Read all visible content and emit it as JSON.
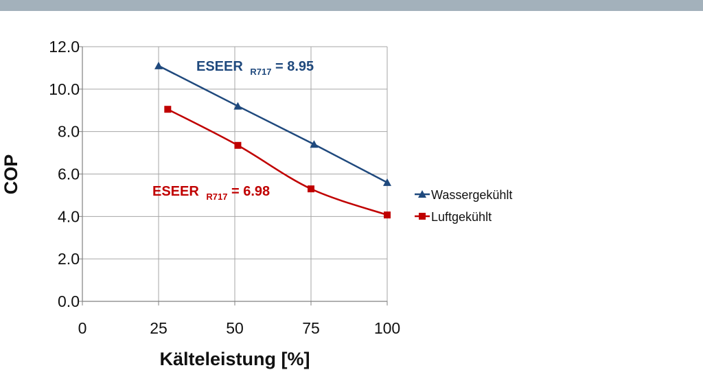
{
  "chart_data": {
    "type": "line",
    "xlabel": "Kälteleistung [%]",
    "ylabel": "COP",
    "xlim": [
      0,
      100
    ],
    "ylim": [
      0,
      12
    ],
    "x_ticks": [
      "0",
      "25",
      "50",
      "75",
      "100"
    ],
    "y_ticks": [
      "0.0",
      "2.0",
      "4.0",
      "6.0",
      "8.0",
      "10.0",
      "12.0"
    ],
    "grid": true,
    "legend_position": "right",
    "series": [
      {
        "name": "Wassergekühlt",
        "color": "#1f497d",
        "marker": "triangle",
        "x": [
          25,
          51,
          76,
          100
        ],
        "y": [
          11.1,
          9.2,
          7.4,
          5.6
        ]
      },
      {
        "name": "Luftgekühlt",
        "color": "#c00000",
        "marker": "square",
        "x": [
          28,
          51,
          75,
          100
        ],
        "y": [
          9.05,
          7.35,
          5.3,
          4.07
        ]
      }
    ],
    "annotations": [
      {
        "series": "Wassergekühlt",
        "text": "ESEER",
        "sub": "R717",
        "suffix": " = 8.95",
        "color": "#1f497d"
      },
      {
        "series": "Luftgekühlt",
        "text": "ESEER",
        "sub": "R717",
        "suffix": " = 6.98",
        "color": "#c00000"
      }
    ]
  }
}
